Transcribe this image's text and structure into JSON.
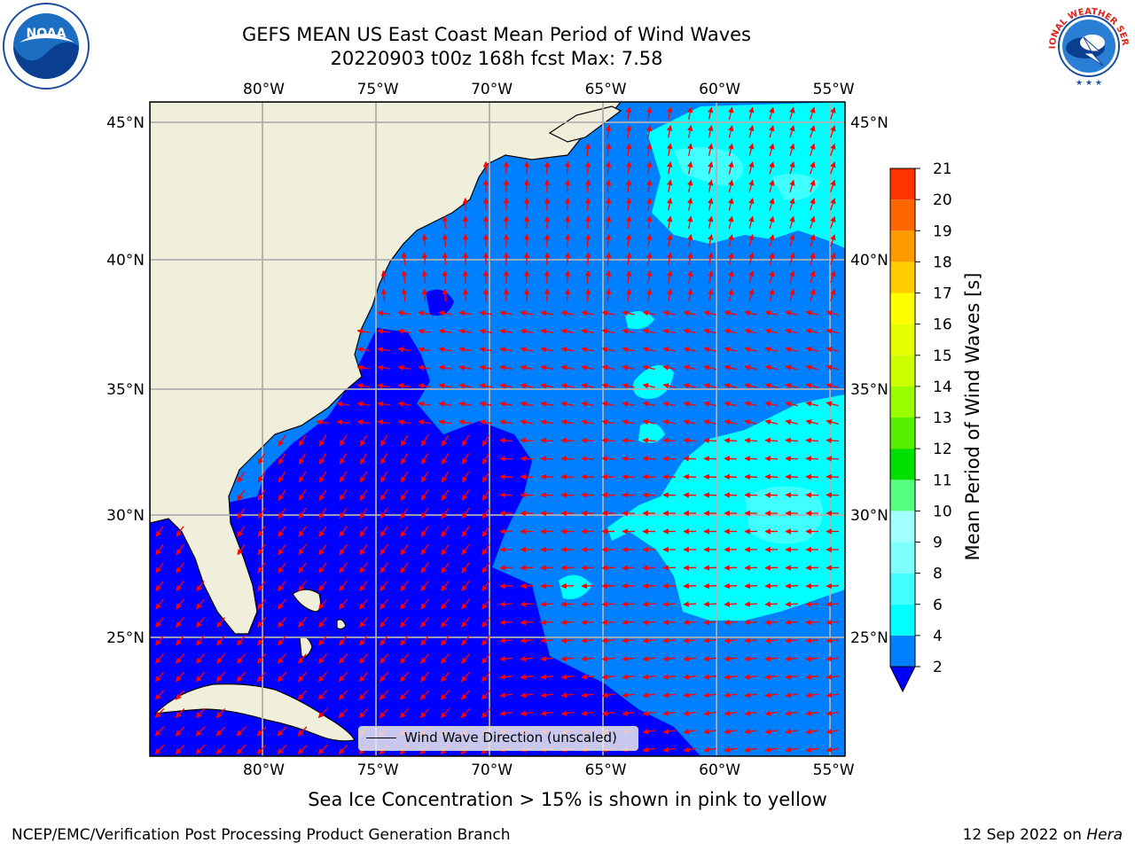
{
  "title": {
    "line1": "GEFS MEAN US East Coast Mean Period of Wind Waves",
    "line2": "20220903 t00z 168h fcst   Max: 7.58"
  },
  "logos": {
    "left_icon": "noaa-logo-icon",
    "left_text": "NOAA",
    "right_icon": "nws-logo-icon",
    "right_text": "NATIONAL WEATHER SERVICE"
  },
  "map": {
    "lon_labels": [
      "80°W",
      "75°W",
      "70°W",
      "65°W",
      "60°W",
      "55°W"
    ],
    "lat_labels": [
      "45°N",
      "40°N",
      "35°N",
      "30°N",
      "25°N"
    ],
    "lon_ticks": [
      -80,
      -75,
      -70,
      -65,
      -60,
      -55
    ],
    "lat_ticks": [
      45,
      40,
      35,
      30,
      25
    ],
    "lon_range": [
      -85,
      -54.5
    ],
    "lat_range": [
      20.3,
      45.8
    ],
    "land_color": "#efefdc",
    "coast_color": "#000000",
    "arrow_color": "#ff0000",
    "legend_label": "Wind Wave Direction (unscaled)"
  },
  "colorbar": {
    "title": "Mean Period of Wind Waves [s]",
    "levels": [
      2,
      4,
      6,
      8,
      9,
      10,
      11,
      12,
      13,
      14,
      15,
      16,
      17,
      18,
      19,
      20,
      21
    ],
    "tick_labels": [
      "2",
      "4",
      "6",
      "8",
      "9",
      "10",
      "11",
      "12",
      "13",
      "14",
      "15",
      "16",
      "17",
      "18",
      "19",
      "20",
      "21"
    ],
    "colors": [
      "#0080ff",
      "#00ffff",
      "#40ffff",
      "#80ffff",
      "#a0ffff",
      "#55ff80",
      "#00e000",
      "#55f000",
      "#99ff00",
      "#ccff00",
      "#e6ff00",
      "#ffff00",
      "#ffcc00",
      "#ff9900",
      "#ff6600",
      "#ff3300",
      "#ff0000"
    ],
    "under_color": "#0000ff"
  },
  "footer": {
    "note": "Sea Ice Concentration > 15% is shown in pink to yellow",
    "credit": "NCEP/EMC/Verification Post Processing Product Generation Branch",
    "date": "12 Sep 2022 on ",
    "machine": "Hera"
  }
}
